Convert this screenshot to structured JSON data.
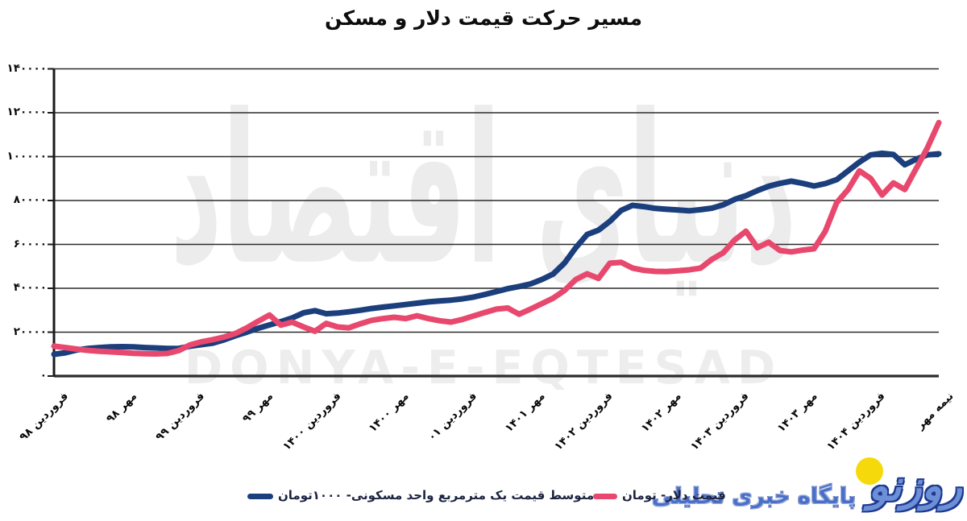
{
  "chart_data": {
    "type": "line",
    "title": "مسیر حرکت قیمت دلار و مسکن",
    "xlabel": "",
    "ylabel": "",
    "ylim": [
      0,
      140000
    ],
    "grid": true,
    "legend_position": "bottom",
    "y_ticks": [
      0,
      20000,
      40000,
      60000,
      80000,
      100000,
      120000,
      140000
    ],
    "y_tick_labels": [
      "۰",
      "۲۰۰۰۰",
      "۴۰۰۰۰",
      "۶۰۰۰۰",
      "۸۰۰۰۰",
      "۱۰۰۰۰۰",
      "۱۲۰۰۰۰",
      "۱۴۰۰۰۰"
    ],
    "x_tick_labels": [
      "فروردین ۹۸",
      "مهر ۹۸",
      "فروردین ۹۹",
      "مهر ۹۹",
      "فروردین ۱۴۰۰",
      "مهر ۱۴۰۰",
      "فروردین ۰۱",
      "مهر ۱۴۰۱",
      "فروردین ۱۴۰۲",
      "مهر ۱۴۰۲",
      "فروردین ۱۴۰۳",
      "مهر ۱۴۰۳",
      "فروردین ۱۴۰۴",
      "نیمه مهر"
    ],
    "x_tick_indices": [
      0,
      6,
      12,
      18,
      24,
      30,
      36,
      42,
      48,
      54,
      60,
      66,
      72,
      78
    ],
    "x_unit": "month (Farvardin 1398 to mid-Mehr 1404)",
    "series": [
      {
        "name": "متوسط قیمت یک مترمربع واحد مسکونی- ۱۰۰۰تومان",
        "color": "#1b3e7c",
        "values": [
          9900,
          10600,
          11900,
          12600,
          13000,
          13300,
          13400,
          13300,
          13000,
          12800,
          12600,
          12600,
          13600,
          14300,
          15000,
          16500,
          18400,
          20000,
          21800,
          23300,
          24800,
          26500,
          28800,
          29800,
          28400,
          28700,
          29300,
          30000,
          30800,
          31400,
          32000,
          32600,
          33200,
          33800,
          34200,
          34600,
          35200,
          36000,
          37200,
          38500,
          39800,
          40800,
          42000,
          44000,
          46500,
          51500,
          58500,
          64500,
          66500,
          70500,
          75500,
          77800,
          77200,
          76400,
          76000,
          75700,
          75300,
          75800,
          76500,
          78000,
          80500,
          82200,
          84500,
          86500,
          87800,
          88800,
          87800,
          86600,
          87700,
          89500,
          93500,
          97500,
          100800,
          101500,
          101000,
          96300,
          98800,
          100800,
          101300
        ]
      },
      {
        "name": "قیمت دلار- تومان",
        "color": "#e8486d",
        "values": [
          13600,
          13000,
          12300,
          11700,
          11300,
          11000,
          10700,
          10400,
          10200,
          10100,
          10300,
          11600,
          14200,
          15600,
          16600,
          17800,
          19400,
          22000,
          25000,
          27800,
          23200,
          24600,
          22400,
          20400,
          24000,
          22400,
          22000,
          23800,
          25400,
          26200,
          26800,
          26200,
          27500,
          26200,
          25200,
          24600,
          25800,
          27400,
          29000,
          30500,
          31000,
          28200,
          30500,
          33000,
          35500,
          39000,
          44000,
          46600,
          44500,
          51400,
          51800,
          49200,
          48200,
          47700,
          47600,
          48000,
          48400,
          49200,
          53200,
          56200,
          62000,
          66000,
          58500,
          61000,
          57200,
          56600,
          57400,
          58000,
          66000,
          79000,
          85000,
          93500,
          90000,
          82500,
          88000,
          85000,
          94500,
          104000,
          115500
        ]
      }
    ]
  },
  "watermark": {
    "fa": "دنیای اقتصاد",
    "en": "DONYA-E-EQTESAD"
  },
  "logo": {
    "name": "روزنو",
    "tagline": "پایگاه خبری تحلیلی"
  }
}
